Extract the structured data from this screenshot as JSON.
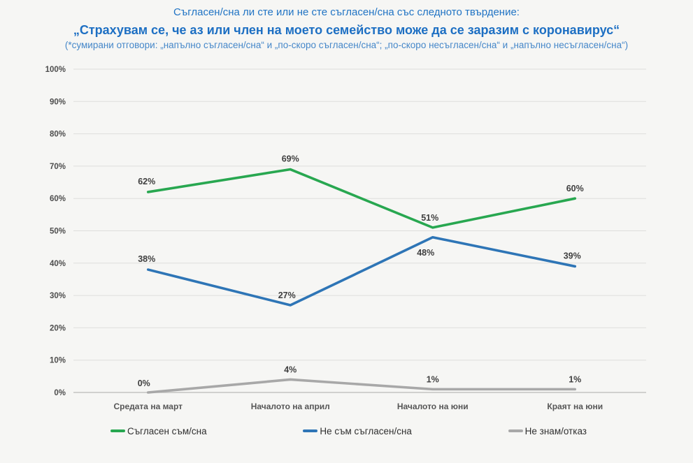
{
  "header": {
    "line1": "Съгласен/сна ли сте или не сте съгласен/сна със следното твърдение:",
    "line2": "„Страхувам се, че аз или член на моето семейство може да се заразим с коронавирус“",
    "line3": "(*сумирани отговори: „напълно съгласен/сна“ и „по-скоро съгласен/сна“; „по-скоро несъгласен/сна“ и „напълно несъгласен/сна“)"
  },
  "chart_data": {
    "type": "line",
    "categories": [
      "Средата на март",
      "Началото на април",
      "Началото на юни",
      "Краят на юни"
    ],
    "series": [
      {
        "name": "Съгласен съм/сна",
        "color": "#28a750",
        "values": [
          62,
          69,
          51,
          60
        ],
        "label_offsets": [
          [
            -2,
            -11
          ],
          [
            0,
            -11
          ],
          [
            -4,
            -10
          ],
          [
            0,
            -10
          ]
        ]
      },
      {
        "name": "Не съм съгласен/сна",
        "color": "#2e75b6",
        "values": [
          38,
          27,
          48,
          39
        ],
        "label_offsets": [
          [
            -2,
            -11
          ],
          [
            -5,
            -10
          ],
          [
            -10,
            26
          ],
          [
            -4,
            -11
          ]
        ]
      },
      {
        "name": "Не знам/отказ",
        "color": "#a8a8a8",
        "values": [
          0,
          4,
          1,
          1
        ],
        "label_offsets": [
          [
            -6,
            -9
          ],
          [
            0,
            -10
          ],
          [
            0,
            -10
          ],
          [
            0,
            -10
          ]
        ]
      }
    ],
    "title": "",
    "xlabel": "",
    "ylabel": "",
    "ylim": [
      0,
      100
    ],
    "ytick_step": 10,
    "ytick_suffix": "%",
    "value_suffix": "%",
    "grid": true,
    "legend_position": "bottom",
    "colors": {
      "grid_line": "#dededc",
      "axis_line": "#c4c4c2",
      "tick_label": "#4d4d4d",
      "category_label": "#565656",
      "data_label": "#3f3f3f",
      "background": "#f6f6f4",
      "title_blue": "#2174c4"
    }
  }
}
